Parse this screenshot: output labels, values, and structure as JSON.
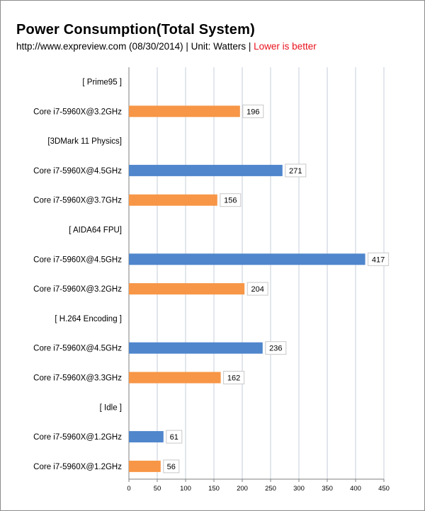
{
  "header": {
    "title": "Power Consumption(Total System)",
    "source_text": "http://www.expreview.com  (08/30/2014) | Unit: Watters | ",
    "note_text": "Lower is better"
  },
  "colors": {
    "orange": "#f79646",
    "blue": "#4f86cc",
    "grid": "#c6cdd8",
    "note_red": "#e8101a"
  },
  "chart_data": {
    "type": "bar",
    "orientation": "horizontal",
    "xlim": [
      0,
      450
    ],
    "xticks": [
      0,
      50,
      100,
      150,
      200,
      250,
      300,
      350,
      400,
      450
    ],
    "grid": "vertical",
    "rows": [
      {
        "label": "[ Prime95 ]",
        "value": null,
        "color": ""
      },
      {
        "label": "Core i7-5960X@3.2GHz",
        "value": 196,
        "color": "orange"
      },
      {
        "label": "[3DMark  11 Physics]",
        "value": null,
        "color": ""
      },
      {
        "label": "Core i7-5960X@4.5GHz",
        "value": 271,
        "color": "blue"
      },
      {
        "label": "Core i7-5960X@3.7GHz",
        "value": 156,
        "color": "orange"
      },
      {
        "label": "[ AIDA64  FPU]",
        "value": null,
        "color": ""
      },
      {
        "label": "Core i7-5960X@4.5GHz",
        "value": 417,
        "color": "blue"
      },
      {
        "label": "Core i7-5960X@3.2GHz",
        "value": 204,
        "color": "orange"
      },
      {
        "label": "[ H.264 Encoding ]",
        "value": null,
        "color": ""
      },
      {
        "label": "Core i7-5960X@4.5GHz",
        "value": 236,
        "color": "blue"
      },
      {
        "label": "Core i7-5960X@3.3GHz",
        "value": 162,
        "color": "orange"
      },
      {
        "label": "[ Idle ]",
        "value": null,
        "color": ""
      },
      {
        "label": "Core i7-5960X@1.2GHz",
        "value": 61,
        "color": "blue"
      },
      {
        "label": "Core i7-5960X@1.2GHz",
        "value": 56,
        "color": "orange"
      }
    ]
  }
}
